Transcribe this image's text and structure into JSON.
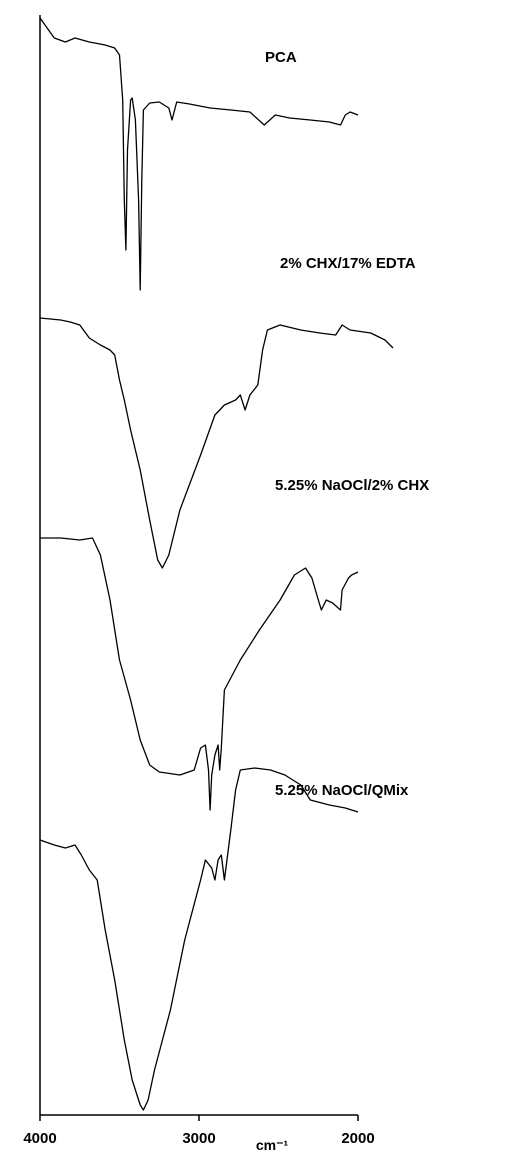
{
  "chart_data": {
    "type": "line",
    "x_label": "cm⁻¹",
    "xlim": [
      4000,
      2000
    ],
    "xticks": [
      4000,
      3000,
      2000
    ],
    "ylim": [
      0,
      110
    ],
    "color": "#000000",
    "series": [
      {
        "name": "PCA",
        "x": [
          4000,
          3910,
          3840,
          3780,
          3690,
          3590,
          3530,
          3500,
          3480,
          3470,
          3460,
          3450,
          3430,
          3420,
          3400,
          3380,
          3370,
          3360,
          3350,
          3310,
          3250,
          3190,
          3170,
          3140,
          3060,
          2930,
          2800,
          2680,
          2590,
          2520,
          2430,
          2300,
          2180,
          2110,
          2080,
          2050,
          2000
        ],
        "values": [
          109.7,
          107.7,
          107.3,
          107.7,
          107.3,
          107,
          106.7,
          106,
          101.5,
          91.5,
          86.5,
          96.5,
          101.5,
          101.7,
          99.5,
          91.5,
          82.5,
          93.5,
          100.5,
          101.2,
          101.3,
          100.7,
          99.5,
          101.3,
          101.1,
          100.7,
          100.5,
          100.3,
          99,
          100,
          99.7,
          99.5,
          99.3,
          99,
          100,
          100.3,
          100
        ]
      },
      {
        "name": "2% CHX/17% EDTA",
        "x": [
          4000,
          3870,
          3810,
          3750,
          3690,
          3620,
          3560,
          3530,
          3500,
          3470,
          3430,
          3370,
          3310,
          3260,
          3230,
          3190,
          3120,
          2990,
          2900,
          2840,
          2770,
          2740,
          2710,
          2680,
          2630,
          2600,
          2570,
          2490,
          2360,
          2240,
          2140,
          2100,
          2050,
          1920,
          1830,
          1780
        ],
        "values": [
          79.7,
          79.5,
          79.3,
          79,
          77.7,
          77,
          76.5,
          76,
          73.5,
          71.5,
          68.5,
          64.5,
          59.5,
          55.5,
          54.7,
          56,
          60.5,
          66,
          70,
          71,
          71.5,
          72,
          70.5,
          72,
          73,
          76.5,
          78.5,
          79,
          78.5,
          78.2,
          78,
          79,
          78.5,
          78.2,
          77.5,
          76.7
        ]
      },
      {
        "name": "5.25% NaOCl/2% CHX",
        "x": [
          4000,
          3870,
          3750,
          3670,
          3620,
          3560,
          3500,
          3430,
          3370,
          3310,
          3250,
          3120,
          3030,
          2990,
          2960,
          2940,
          2930,
          2920,
          2900,
          2880,
          2870,
          2860,
          2840,
          2740,
          2620,
          2490,
          2400,
          2330,
          2290,
          2250,
          2230,
          2200,
          2160,
          2110,
          2100,
          2060,
          2040,
          2000
        ],
        "values": [
          57.7,
          57.7,
          57.5,
          57.7,
          56,
          51.5,
          45.5,
          41.5,
          37.5,
          35,
          34.3,
          34,
          34.5,
          36.7,
          37,
          34.5,
          30.5,
          34,
          36,
          37,
          34.5,
          36.7,
          42.5,
          45.5,
          48.5,
          51.5,
          54,
          54.7,
          53.7,
          51.5,
          50.5,
          51.5,
          51.2,
          50.5,
          52.5,
          53.7,
          54,
          54.3
        ]
      },
      {
        "name": "5.25% NaOCl/QMix",
        "x": [
          4000,
          3910,
          3840,
          3780,
          3740,
          3690,
          3640,
          3590,
          3530,
          3470,
          3420,
          3370,
          3350,
          3320,
          3280,
          3180,
          3090,
          2990,
          2960,
          2920,
          2900,
          2880,
          2860,
          2840,
          2800,
          2770,
          2740,
          2650,
          2550,
          2460,
          2360,
          2300,
          2180,
          2080,
          2000
        ],
        "values": [
          27.5,
          27,
          26.7,
          27,
          26,
          24.5,
          23.5,
          18.5,
          13.5,
          7.5,
          3.5,
          1,
          0.5,
          1.5,
          4.5,
          10.5,
          17.5,
          23.5,
          25.5,
          24.7,
          23.5,
          25.5,
          26,
          23.5,
          28.5,
          32.5,
          34.5,
          34.7,
          34.5,
          34,
          33,
          31.5,
          31,
          30.7,
          30.3
        ]
      }
    ]
  }
}
